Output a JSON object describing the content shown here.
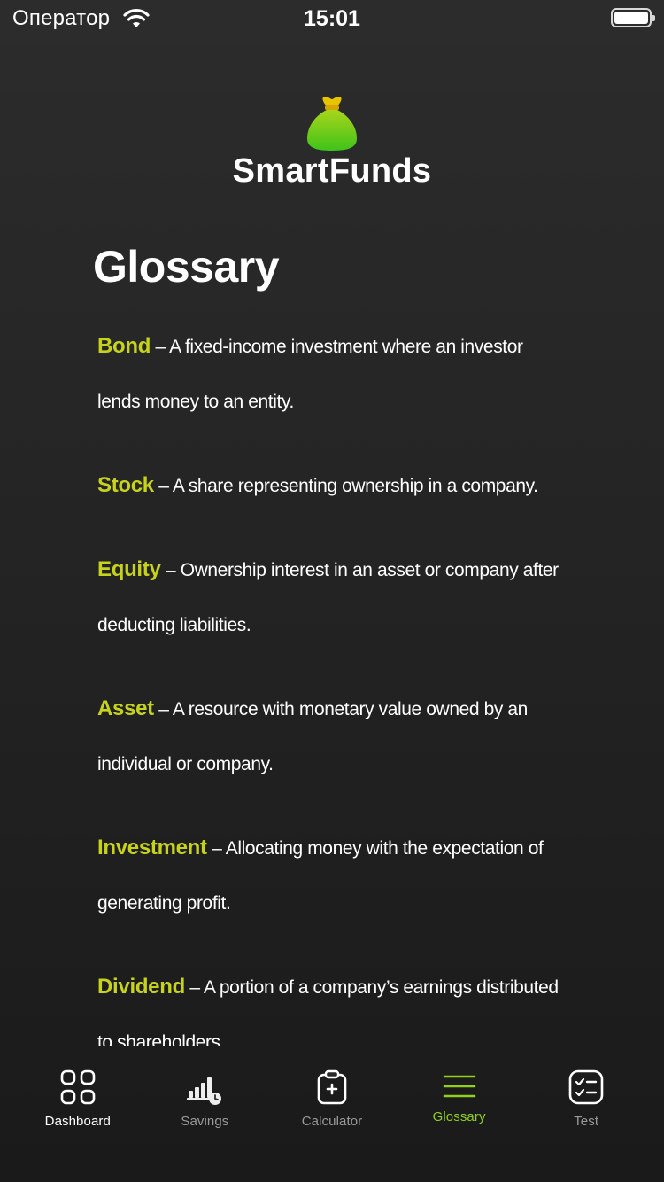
{
  "status_bar": {
    "carrier": "Оператор",
    "time": "15:01"
  },
  "brand": {
    "name": "SmartFunds",
    "icon": "money-bag-icon"
  },
  "page": {
    "title": "Glossary"
  },
  "glossary": [
    {
      "term": "Bond",
      "definition": " – A fixed-income investment where an investor lends money to an entity."
    },
    {
      "term": "Stock",
      "definition": " – A share representing ownership in a company."
    },
    {
      "term": "Equity",
      "definition": " – Ownership interest in an asset or company after deducting liabilities."
    },
    {
      "term": "Asset",
      "definition": " – A resource with monetary value owned by an individual or company."
    },
    {
      "term": "Investment",
      "definition": " – Allocating money with the expectation of generating profit."
    },
    {
      "term": "Dividend",
      "definition": " – A portion of a company’s earnings distributed to shareholders."
    }
  ],
  "tabs": [
    {
      "label": "Dashboard",
      "icon": "dashboard-grid-icon"
    },
    {
      "label": "Savings",
      "icon": "savings-chart-icon"
    },
    {
      "label": "Calculator",
      "icon": "calculator-clipboard-icon"
    },
    {
      "label": "Glossary",
      "icon": "menu-lines-icon",
      "selected": true
    },
    {
      "label": "Test",
      "icon": "checklist-icon"
    }
  ],
  "colors": {
    "term": "#c6d31a",
    "accent": "#8fd11b",
    "background": "#242424"
  }
}
